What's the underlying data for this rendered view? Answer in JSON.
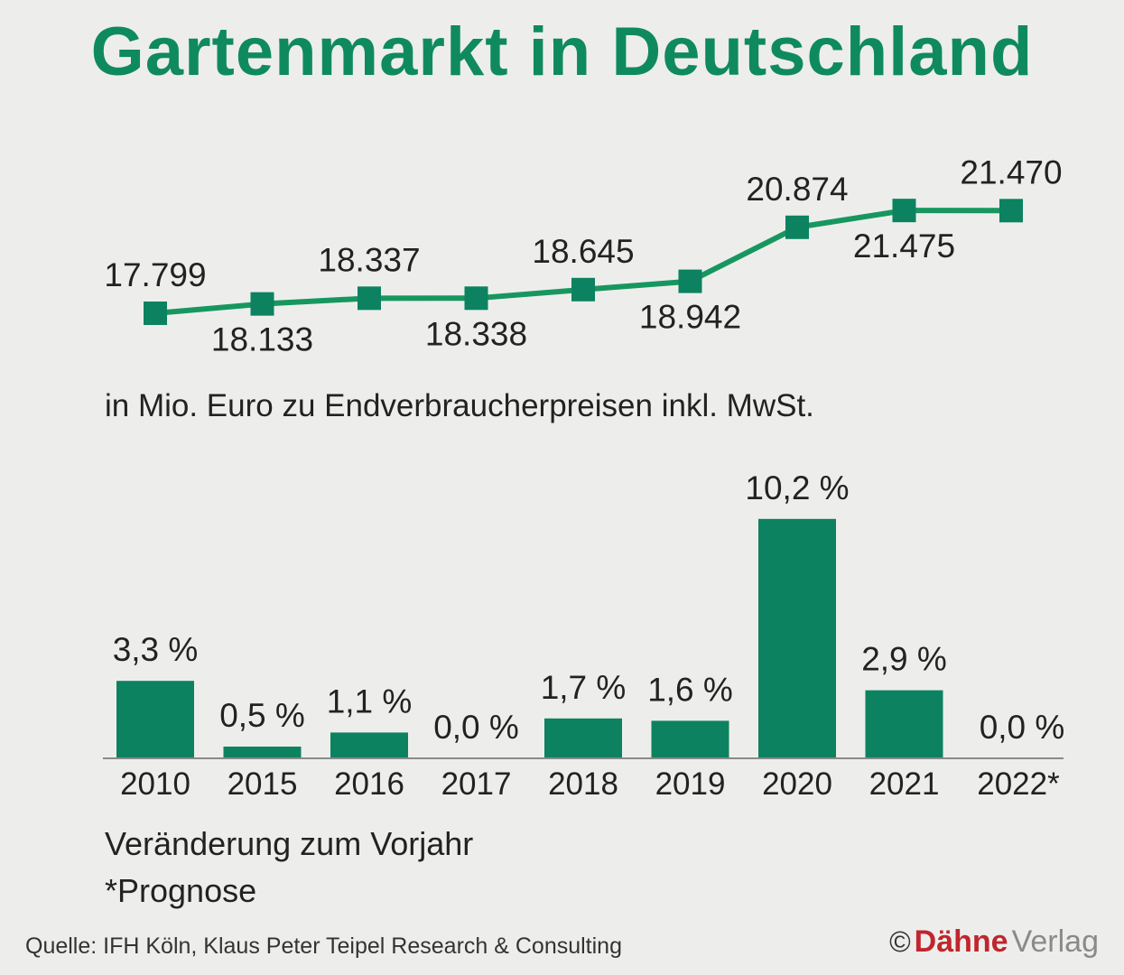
{
  "title": "Gartenmarkt in Deutschland",
  "colors": {
    "accent": "#0f8a5f",
    "bar": "#0c8260",
    "line": "#17975f",
    "brand": "#c0262d"
  },
  "chart_data": [
    {
      "type": "line",
      "title": "Gartenmarkt in Deutschland",
      "ylabel": "in Mio. Euro zu Endverbraucherpreisen inkl. MwSt.",
      "x": [
        "2010",
        "2015",
        "2016",
        "2017",
        "2018",
        "2019",
        "2020",
        "2021",
        "2022*"
      ],
      "values": [
        17799,
        18133,
        18337,
        18338,
        18645,
        18942,
        20874,
        21475,
        21470
      ],
      "labels": [
        "17.799",
        "18.133",
        "18.337",
        "18.338",
        "18.645",
        "18.942",
        "20.874",
        "21.475",
        "21.470"
      ],
      "ylim": [
        17500,
        22000
      ]
    },
    {
      "type": "bar",
      "xlabel": "Veränderung zum Vorjahr",
      "categories": [
        "2010",
        "2015",
        "2016",
        "2017",
        "2018",
        "2019",
        "2020",
        "2021",
        "2022*"
      ],
      "values": [
        3.3,
        0.5,
        1.1,
        0.0,
        1.7,
        1.6,
        10.2,
        2.9,
        0.0
      ],
      "labels": [
        "3,3 %",
        "0,5 %",
        "1,1 %",
        "0,0 %",
        "1,7 %",
        "1,6 %",
        "10,2 %",
        "2,9 %",
        "0,0 %"
      ],
      "ylim": [
        0,
        10.2
      ]
    }
  ],
  "unit_note": "in Mio. Euro zu Endverbraucherpreisen inkl. MwSt.",
  "caption_change": "Veränderung zum Vorjahr",
  "caption_forecast": "*Prognose",
  "source": "Quelle: IFH Köln, Klaus Peter Teipel Research & Consulting",
  "publisher": {
    "copyright": "©",
    "brand": "Dähne",
    "name": "Verlag"
  }
}
